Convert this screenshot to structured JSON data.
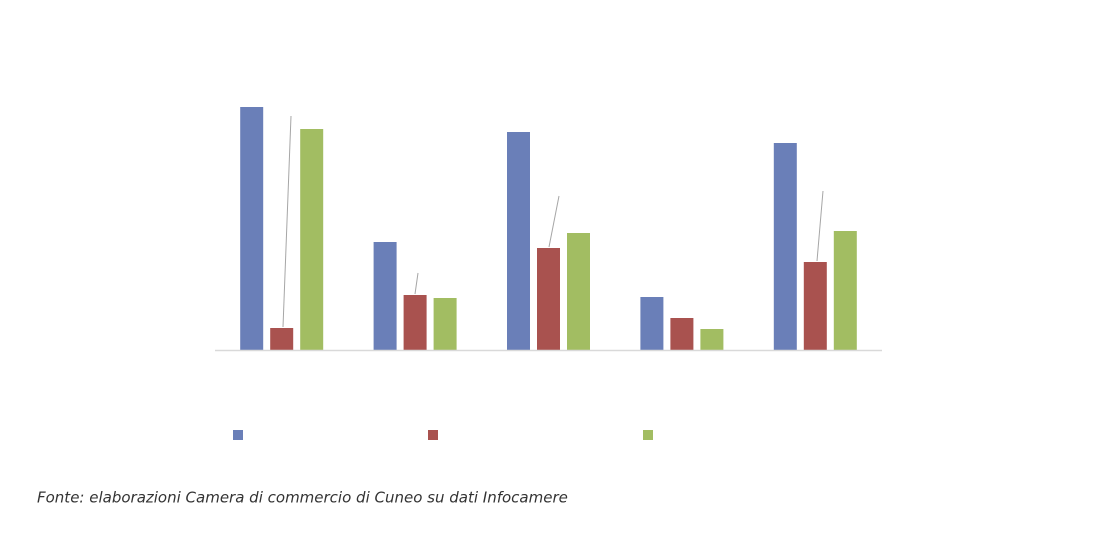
{
  "chart_data": {
    "type": "bar",
    "source": "Fonte: elaborazioni Camera di commercio di Cuneo su dati Infocamere",
    "categories": [
      null,
      null,
      null,
      null,
      null
    ],
    "series": [
      {
        "color": "#6a7fb8",
        "values": [
          243,
          108,
          218,
          53,
          207
        ]
      },
      {
        "color": "#a9524f",
        "values": [
          22,
          55,
          102,
          32,
          88
        ]
      },
      {
        "color": "#a2bd62",
        "values": [
          221,
          52,
          117,
          21,
          119
        ]
      }
    ],
    "ylim": [
      0,
      250
    ]
  }
}
